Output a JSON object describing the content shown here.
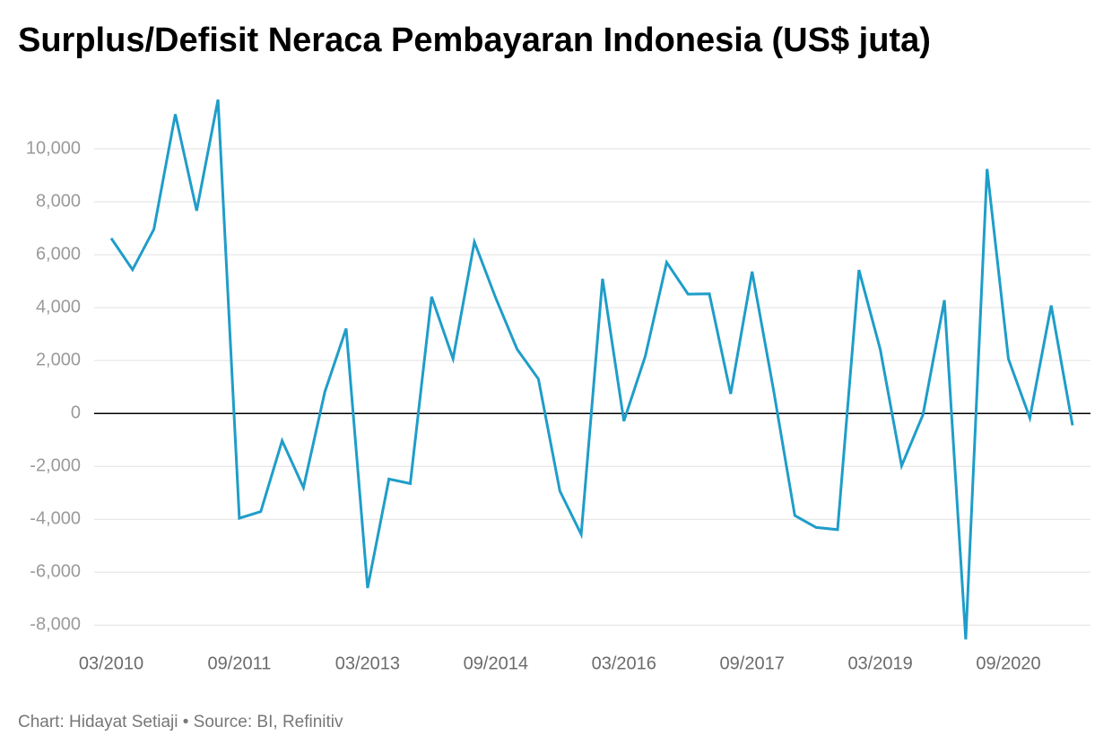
{
  "chart_data": {
    "type": "line",
    "title": "Surplus/Defisit Neraca Pembayaran Indonesia (US$ juta)",
    "source": "Chart: Hidayat Setiaji • Source: BI, Refinitiv",
    "categories": [
      "03/2010",
      null,
      null,
      null,
      null,
      null,
      "09/2011",
      null,
      null,
      null,
      null,
      null,
      "03/2013",
      null,
      null,
      null,
      null,
      null,
      "09/2014",
      null,
      null,
      null,
      null,
      null,
      "03/2016",
      null,
      null,
      null,
      null,
      null,
      "09/2017",
      null,
      null,
      null,
      null,
      null,
      "03/2019",
      null,
      null,
      null,
      null,
      null,
      "09/2020",
      null,
      null,
      null
    ],
    "series": [
      {
        "name": "Neraca Pembayaran",
        "color": "#1f9dc9",
        "values": [
          6620,
          5430,
          6960,
          11310,
          7660,
          11860,
          -3960,
          -3710,
          -1030,
          -2800,
          810,
          3210,
          -6600,
          -2480,
          -2650,
          4410,
          2070,
          6480,
          4360,
          2430,
          1300,
          -2930,
          -4570,
          5090,
          -290,
          2170,
          5710,
          4510,
          4520,
          740,
          5360,
          900,
          -3860,
          -4310,
          -4390,
          5420,
          2420,
          -1980,
          -50,
          4280,
          -8540,
          9240,
          2060,
          -170,
          4080,
          -450
        ]
      }
    ],
    "ylim": [
      -8700,
      12000
    ],
    "yticks": [
      {
        "value": -8000,
        "label": "-8,000"
      },
      {
        "value": -6000,
        "label": "-6,000"
      },
      {
        "value": -4000,
        "label": "-4,000"
      },
      {
        "value": -2000,
        "label": "-2,000"
      },
      0,
      {
        "value": 2000,
        "label": "2,000"
      },
      {
        "value": 4000,
        "label": "4,000"
      },
      {
        "value": 6000,
        "label": "6,000"
      },
      {
        "value": 8000,
        "label": "8,000"
      },
      {
        "value": 10000,
        "label": "10,000"
      }
    ],
    "grid": true
  }
}
